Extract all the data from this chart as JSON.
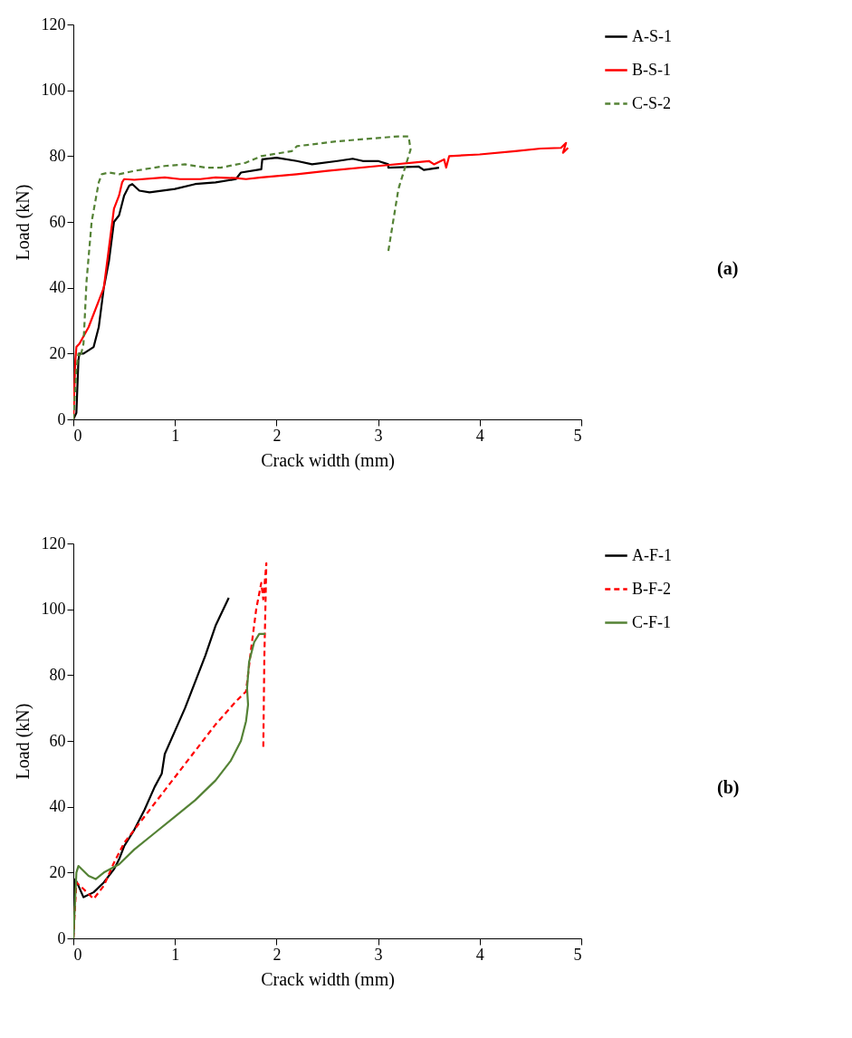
{
  "chart_data": [
    {
      "type": "line",
      "xlabel": "Crack width (mm)",
      "ylabel": "Load (kN)",
      "xlim": [
        0,
        5
      ],
      "xticks": [
        0,
        1,
        2,
        3,
        4,
        5
      ],
      "ylim": [
        0,
        120
      ],
      "yticks": [
        0,
        20,
        40,
        60,
        80,
        100,
        120
      ],
      "grid": false,
      "legend": "right",
      "annotations": [
        "(a)"
      ],
      "series": [
        {
          "name": "A-S-1",
          "color": "#000000",
          "line_style": "solid",
          "x": [
            0,
            0.03,
            0.05,
            0.06,
            0.1,
            0.2,
            0.25,
            0.3,
            0.35,
            0.4,
            0.45,
            0.5,
            0.55,
            0.58,
            0.65,
            0.75,
            1,
            1.2,
            1.4,
            1.6,
            1.65,
            1.85,
            1.86,
            2,
            2.2,
            2.35,
            2.6,
            2.75,
            2.85,
            3,
            3.1,
            3.1,
            3.4,
            3.45,
            3.6
          ],
          "values": [
            0,
            2,
            18,
            20,
            20,
            22,
            28,
            40,
            48,
            60,
            62,
            68,
            71,
            71.5,
            69.5,
            69,
            70,
            71.5,
            72,
            73,
            75,
            76,
            79,
            79.5,
            78.5,
            77.5,
            78.5,
            79.2,
            78.5,
            78.5,
            77.5,
            76.5,
            76.8,
            75.8,
            76.5
          ]
        },
        {
          "name": "B-S-1",
          "color": "#ff0000",
          "line_style": "solid",
          "x": [
            0,
            0.02,
            0.03,
            0.06,
            0.15,
            0.25,
            0.3,
            0.35,
            0.4,
            0.45,
            0.48,
            0.5,
            0.6,
            0.9,
            1.05,
            1.25,
            1.4,
            1.6,
            1.7,
            1.85,
            2.2,
            2.5,
            3,
            3.5,
            3.55,
            3.65,
            3.67,
            3.7,
            4,
            4.35,
            4.6,
            4.8,
            4.85,
            4.82,
            4.87
          ],
          "values": [
            0,
            18,
            22,
            23,
            28,
            36,
            40,
            52,
            64,
            68,
            72,
            73,
            72.8,
            73.5,
            73,
            73,
            73.5,
            73.3,
            73,
            73.5,
            74.5,
            75.5,
            77,
            78.5,
            77.5,
            79,
            76.5,
            80,
            80.5,
            81.5,
            82.3,
            82.5,
            84,
            81,
            82.5
          ]
        },
        {
          "name": "C-S-2",
          "color": "#548235",
          "line_style": "dashed",
          "x": [
            0,
            0.03,
            0.05,
            0.07,
            0.1,
            0.13,
            0.18,
            0.25,
            0.28,
            0.35,
            0.45,
            0.6,
            0.9,
            1.1,
            1.3,
            1.45,
            1.7,
            1.85,
            2.15,
            2.2,
            2.6,
            3,
            3.2,
            3.3,
            3.32,
            3.2,
            3.1
          ],
          "values": [
            0,
            15,
            20,
            19,
            23,
            42,
            60,
            72,
            74.5,
            75,
            74.5,
            75.5,
            77,
            77.5,
            76.5,
            76.5,
            78,
            80,
            81.5,
            83,
            84.5,
            85.5,
            86,
            86,
            82,
            70,
            51
          ]
        }
      ]
    },
    {
      "type": "line",
      "xlabel": "Crack width (mm)",
      "ylabel": "Load (kN)",
      "xlim": [
        0,
        5
      ],
      "xticks": [
        0,
        1,
        2,
        3,
        4,
        5
      ],
      "ylim": [
        0,
        120
      ],
      "yticks": [
        0,
        20,
        40,
        60,
        80,
        100,
        120
      ],
      "grid": false,
      "legend": "right",
      "annotations": [
        "(b)"
      ],
      "series": [
        {
          "name": "A-F-1",
          "color": "#000000",
          "line_style": "solid",
          "x": [
            0,
            0.02,
            0.05,
            0.1,
            0.2,
            0.3,
            0.4,
            0.45,
            0.5,
            0.6,
            0.7,
            0.8,
            0.87,
            0.9,
            1,
            1.1,
            1.2,
            1.3,
            1.4,
            1.53
          ],
          "values": [
            0,
            18,
            16,
            12.5,
            14,
            17,
            21,
            24,
            28,
            33,
            39,
            46,
            50,
            56,
            63,
            70,
            78,
            86,
            95,
            103.5
          ]
        },
        {
          "name": "B-F-2",
          "color": "#ff0000",
          "line_style": "dashed",
          "x": [
            0,
            0.03,
            0.1,
            0.2,
            0.3,
            0.4,
            0.5,
            0.6,
            0.8,
            1,
            1.2,
            1.4,
            1.6,
            1.7,
            1.75,
            1.8,
            1.85,
            1.87,
            1.9,
            1.88,
            1.87
          ],
          "values": [
            0,
            17,
            15,
            12,
            16,
            23,
            29,
            33,
            41,
            49,
            57,
            65,
            72,
            75,
            88,
            100,
            108,
            103,
            114,
            85,
            58
          ]
        },
        {
          "name": "C-F-1",
          "color": "#548235",
          "line_style": "solid",
          "x": [
            0,
            0.03,
            0.05,
            0.15,
            0.22,
            0.3,
            0.45,
            0.6,
            0.8,
            1,
            1.2,
            1.4,
            1.55,
            1.65,
            1.7,
            1.72,
            1.71,
            1.73,
            1.78,
            1.83,
            1.89
          ],
          "values": [
            0,
            20,
            22,
            19,
            18,
            20,
            22.5,
            27,
            32,
            37,
            42,
            48,
            54,
            60,
            66,
            71,
            76,
            84,
            90,
            92.5,
            92.5
          ]
        }
      ]
    }
  ]
}
